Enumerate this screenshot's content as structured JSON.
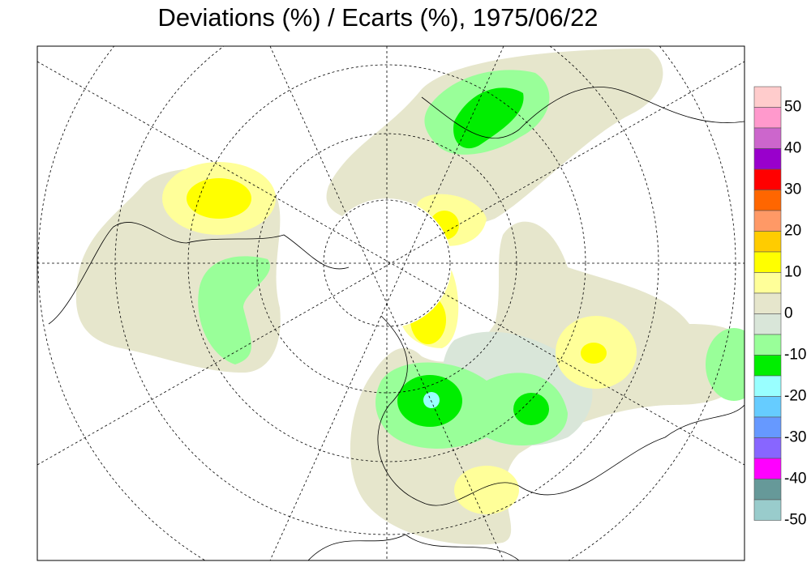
{
  "title": "Deviations (%) / Ecarts (%), 1975/06/22",
  "legend": {
    "colors": [
      "#ffcccc",
      "#ff99cc",
      "#cc66cc",
      "#9900cc",
      "#ff0000",
      "#ff6600",
      "#ff9966",
      "#ffcc00",
      "#ffff00",
      "#ffff99",
      "#e6e6cc",
      "#d9e6d9",
      "#99ff99",
      "#00ee00",
      "#99ffff",
      "#66ccff",
      "#6699ff",
      "#8866ff",
      "#ff00ff",
      "#669999",
      "#99cccc"
    ],
    "labels": [
      50,
      40,
      30,
      20,
      10,
      0,
      -10,
      -20,
      -30,
      -40,
      -50
    ]
  }
}
